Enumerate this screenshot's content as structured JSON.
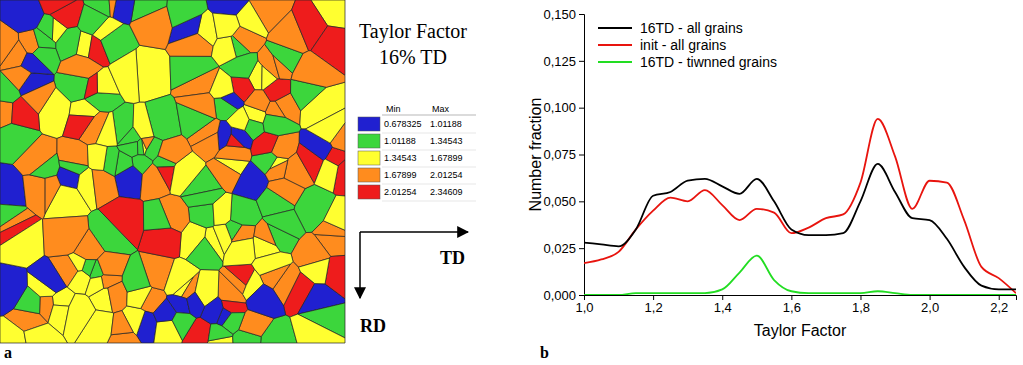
{
  "chart_data": [
    {
      "type": "map",
      "panel_label": "a",
      "title": "Taylor Factor",
      "subtitle": "16% TD",
      "color_scale": {
        "headers": [
          "Min",
          "Max"
        ],
        "rows": [
          {
            "min": 0.678325,
            "max": 1.01188,
            "color": "#2020d0"
          },
          {
            "min": 1.01188,
            "max": 1.34543,
            "color": "#3cd63c"
          },
          {
            "min": 1.34543,
            "max": 1.67899,
            "color": "#ffff30"
          },
          {
            "min": 1.67899,
            "max": 2.01254,
            "color": "#ff8c1e"
          },
          {
            "min": 2.01254,
            "max": 2.34609,
            "color": "#ee1c1c"
          }
        ]
      },
      "axis_labels": {
        "x": "TD",
        "y": "RD"
      }
    },
    {
      "type": "line",
      "panel_label": "b",
      "x_label": "Taylor Factor",
      "y_label": "Number fraction",
      "x": [
        1.0,
        1.05,
        1.1,
        1.15,
        1.2,
        1.25,
        1.3,
        1.35,
        1.4,
        1.45,
        1.5,
        1.55,
        1.6,
        1.65,
        1.7,
        1.75,
        1.8,
        1.85,
        1.9,
        1.95,
        2.0,
        2.05,
        2.1,
        2.15,
        2.2,
        2.25
      ],
      "series": [
        {
          "name": "16TD - all grains",
          "color": "#000000",
          "values": [
            0.028,
            0.027,
            0.026,
            0.035,
            0.053,
            0.055,
            0.061,
            0.062,
            0.058,
            0.054,
            0.062,
            0.05,
            0.035,
            0.032,
            0.032,
            0.033,
            0.05,
            0.07,
            0.055,
            0.041,
            0.04,
            0.03,
            0.015,
            0.005,
            0.003,
            0.003
          ]
        },
        {
          "name": "init - all grains",
          "color": "#e8140e",
          "values": [
            0.017,
            0.019,
            0.023,
            0.035,
            0.045,
            0.052,
            0.05,
            0.056,
            0.048,
            0.04,
            0.046,
            0.044,
            0.033,
            0.036,
            0.041,
            0.043,
            0.06,
            0.094,
            0.074,
            0.046,
            0.061,
            0.06,
            0.04,
            0.015,
            0.009,
            0.001
          ]
        },
        {
          "name": "16TD - tiwnned grains",
          "color": "#22dd22",
          "values": [
            0.0,
            0.0,
            0.0,
            0.001,
            0.001,
            0.001,
            0.001,
            0.001,
            0.003,
            0.012,
            0.021,
            0.008,
            0.002,
            0.001,
            0.001,
            0.001,
            0.001,
            0.002,
            0.001,
            0.0,
            0.0,
            0.0,
            0.0,
            0.0,
            0.0,
            0.0
          ]
        }
      ],
      "xlim": [
        1.0,
        2.25
      ],
      "ylim": [
        0,
        0.15
      ],
      "xticks": [
        {
          "value": 1.0,
          "label": "1,0"
        },
        {
          "value": 1.2,
          "label": "1,2"
        },
        {
          "value": 1.4,
          "label": "1,4"
        },
        {
          "value": 1.6,
          "label": "1,6"
        },
        {
          "value": 1.8,
          "label": "1,8"
        },
        {
          "value": 2.0,
          "label": "2,0"
        },
        {
          "value": 2.2,
          "label": "2,2"
        }
      ],
      "yticks": [
        {
          "value": 0,
          "label": "0,000"
        },
        {
          "value": 0.025,
          "label": "0,025"
        },
        {
          "value": 0.05,
          "label": "0,050"
        },
        {
          "value": 0.075,
          "label": "0,075"
        },
        {
          "value": 0.1,
          "label": "0,100"
        },
        {
          "value": 0.125,
          "label": "0,125"
        },
        {
          "value": 0.15,
          "label": "0,150"
        }
      ],
      "legend": "upper left"
    }
  ]
}
